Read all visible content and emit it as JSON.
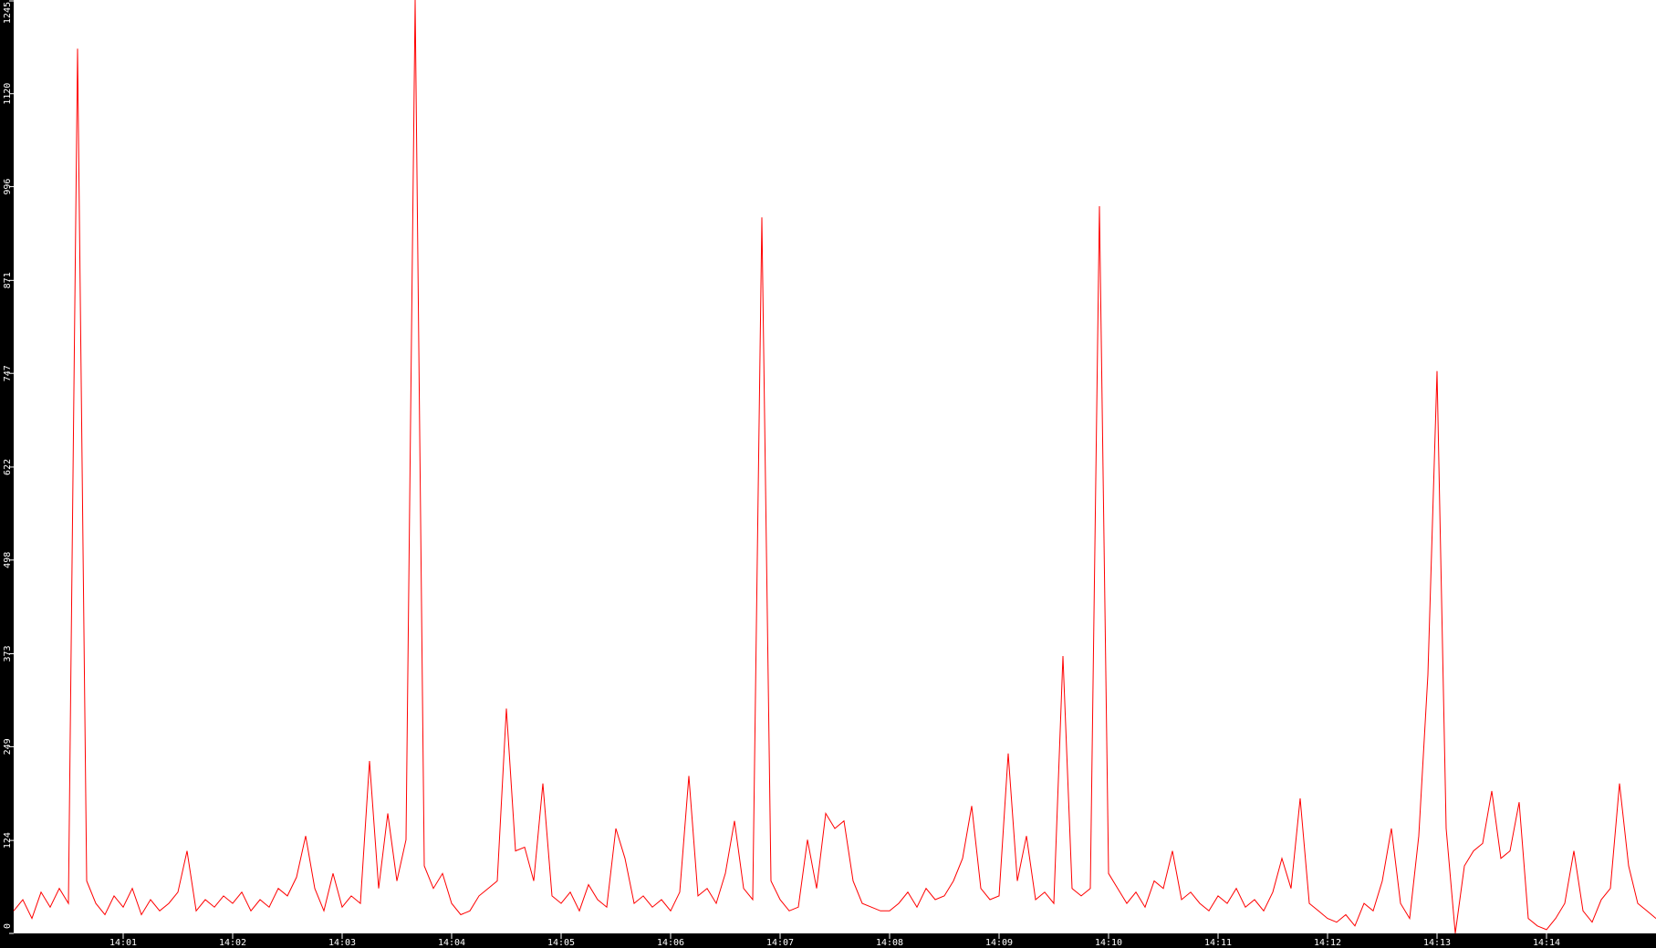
{
  "chart_data": {
    "type": "line",
    "title": "",
    "xlabel": "",
    "ylabel": "",
    "x_start": "14:00:00",
    "x_step_seconds": 5,
    "xlim": [
      "14:00:00",
      "14:15:00"
    ],
    "ylim": [
      0,
      1245
    ],
    "x_ticks": [
      "14:01",
      "14:02",
      "14:03",
      "14:04",
      "14:05",
      "14:06",
      "14:07",
      "14:08",
      "14:09",
      "14:10",
      "14:11",
      "14:12",
      "14:13",
      "14:14"
    ],
    "y_ticks": [
      "0",
      "124",
      "249",
      "373",
      "498",
      "622",
      "747",
      "871",
      "996",
      "1120",
      "1245"
    ],
    "grid": false,
    "legend": "none",
    "colors": {
      "line": "#ff0000",
      "axis_bg": "#000000",
      "axis_text": "#ffffff",
      "plot_bg": "#ffffff"
    },
    "series": [
      {
        "values": [
          30,
          45,
          20,
          55,
          35,
          60,
          40,
          1180,
          70,
          40,
          25,
          50,
          35,
          60,
          25,
          45,
          30,
          40,
          55,
          110,
          30,
          45,
          35,
          50,
          40,
          55,
          30,
          45,
          35,
          60,
          50,
          75,
          130,
          60,
          30,
          80,
          35,
          50,
          40,
          230,
          60,
          160,
          70,
          125,
          1245,
          90,
          60,
          80,
          40,
          25,
          30,
          50,
          60,
          70,
          300,
          110,
          115,
          70,
          200,
          50,
          40,
          55,
          30,
          65,
          45,
          35,
          140,
          100,
          40,
          50,
          35,
          45,
          30,
          55,
          210,
          50,
          60,
          40,
          80,
          150,
          60,
          45,
          955,
          70,
          45,
          30,
          35,
          125,
          60,
          160,
          140,
          150,
          70,
          40,
          35,
          30,
          30,
          40,
          55,
          35,
          60,
          45,
          50,
          70,
          100,
          170,
          60,
          45,
          50,
          240,
          70,
          130,
          45,
          55,
          40,
          370,
          60,
          50,
          60,
          970,
          80,
          60,
          40,
          55,
          35,
          70,
          60,
          110,
          45,
          55,
          40,
          30,
          50,
          40,
          60,
          35,
          45,
          30,
          55,
          100,
          60,
          180,
          40,
          30,
          20,
          15,
          25,
          10,
          40,
          30,
          70,
          140,
          40,
          20,
          130,
          345,
          750,
          140,
          0,
          90,
          110,
          120,
          190,
          100,
          110,
          175,
          20,
          10,
          5,
          20,
          40,
          110,
          30,
          15,
          45,
          60,
          200,
          90,
          40,
          30,
          20
        ]
      }
    ]
  }
}
